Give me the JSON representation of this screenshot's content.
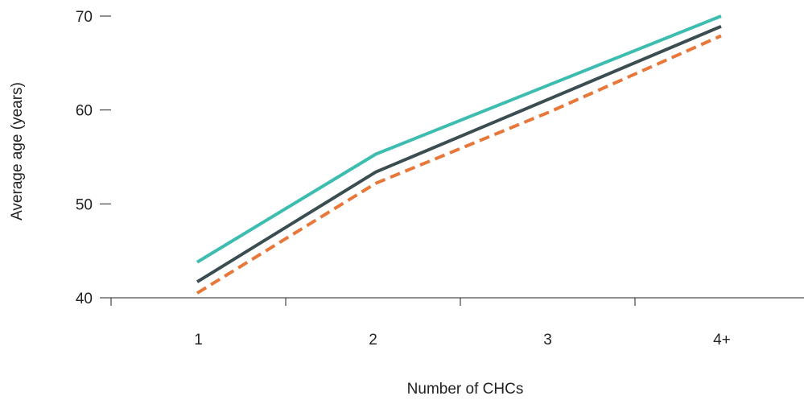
{
  "chart_data": {
    "type": "line",
    "title": "",
    "xlabel": "Number of CHCs",
    "ylabel": "Average age (years)",
    "categories": [
      "1",
      "2",
      "3",
      "4+"
    ],
    "ylim": [
      40,
      70
    ],
    "yticks": [
      40,
      50,
      60,
      70
    ],
    "grid": false,
    "legend": "none",
    "series": [
      {
        "color": "#3dbdb0",
        "dash": "solid",
        "values": [
          43.8,
          55.3,
          62.7,
          70.0
        ]
      },
      {
        "color": "#3a4d50",
        "dash": "solid",
        "values": [
          41.7,
          53.4,
          61.2,
          68.9
        ]
      },
      {
        "color": "#e8773a",
        "dash": "dashed",
        "values": [
          40.5,
          52.2,
          59.8,
          67.9
        ]
      }
    ]
  }
}
